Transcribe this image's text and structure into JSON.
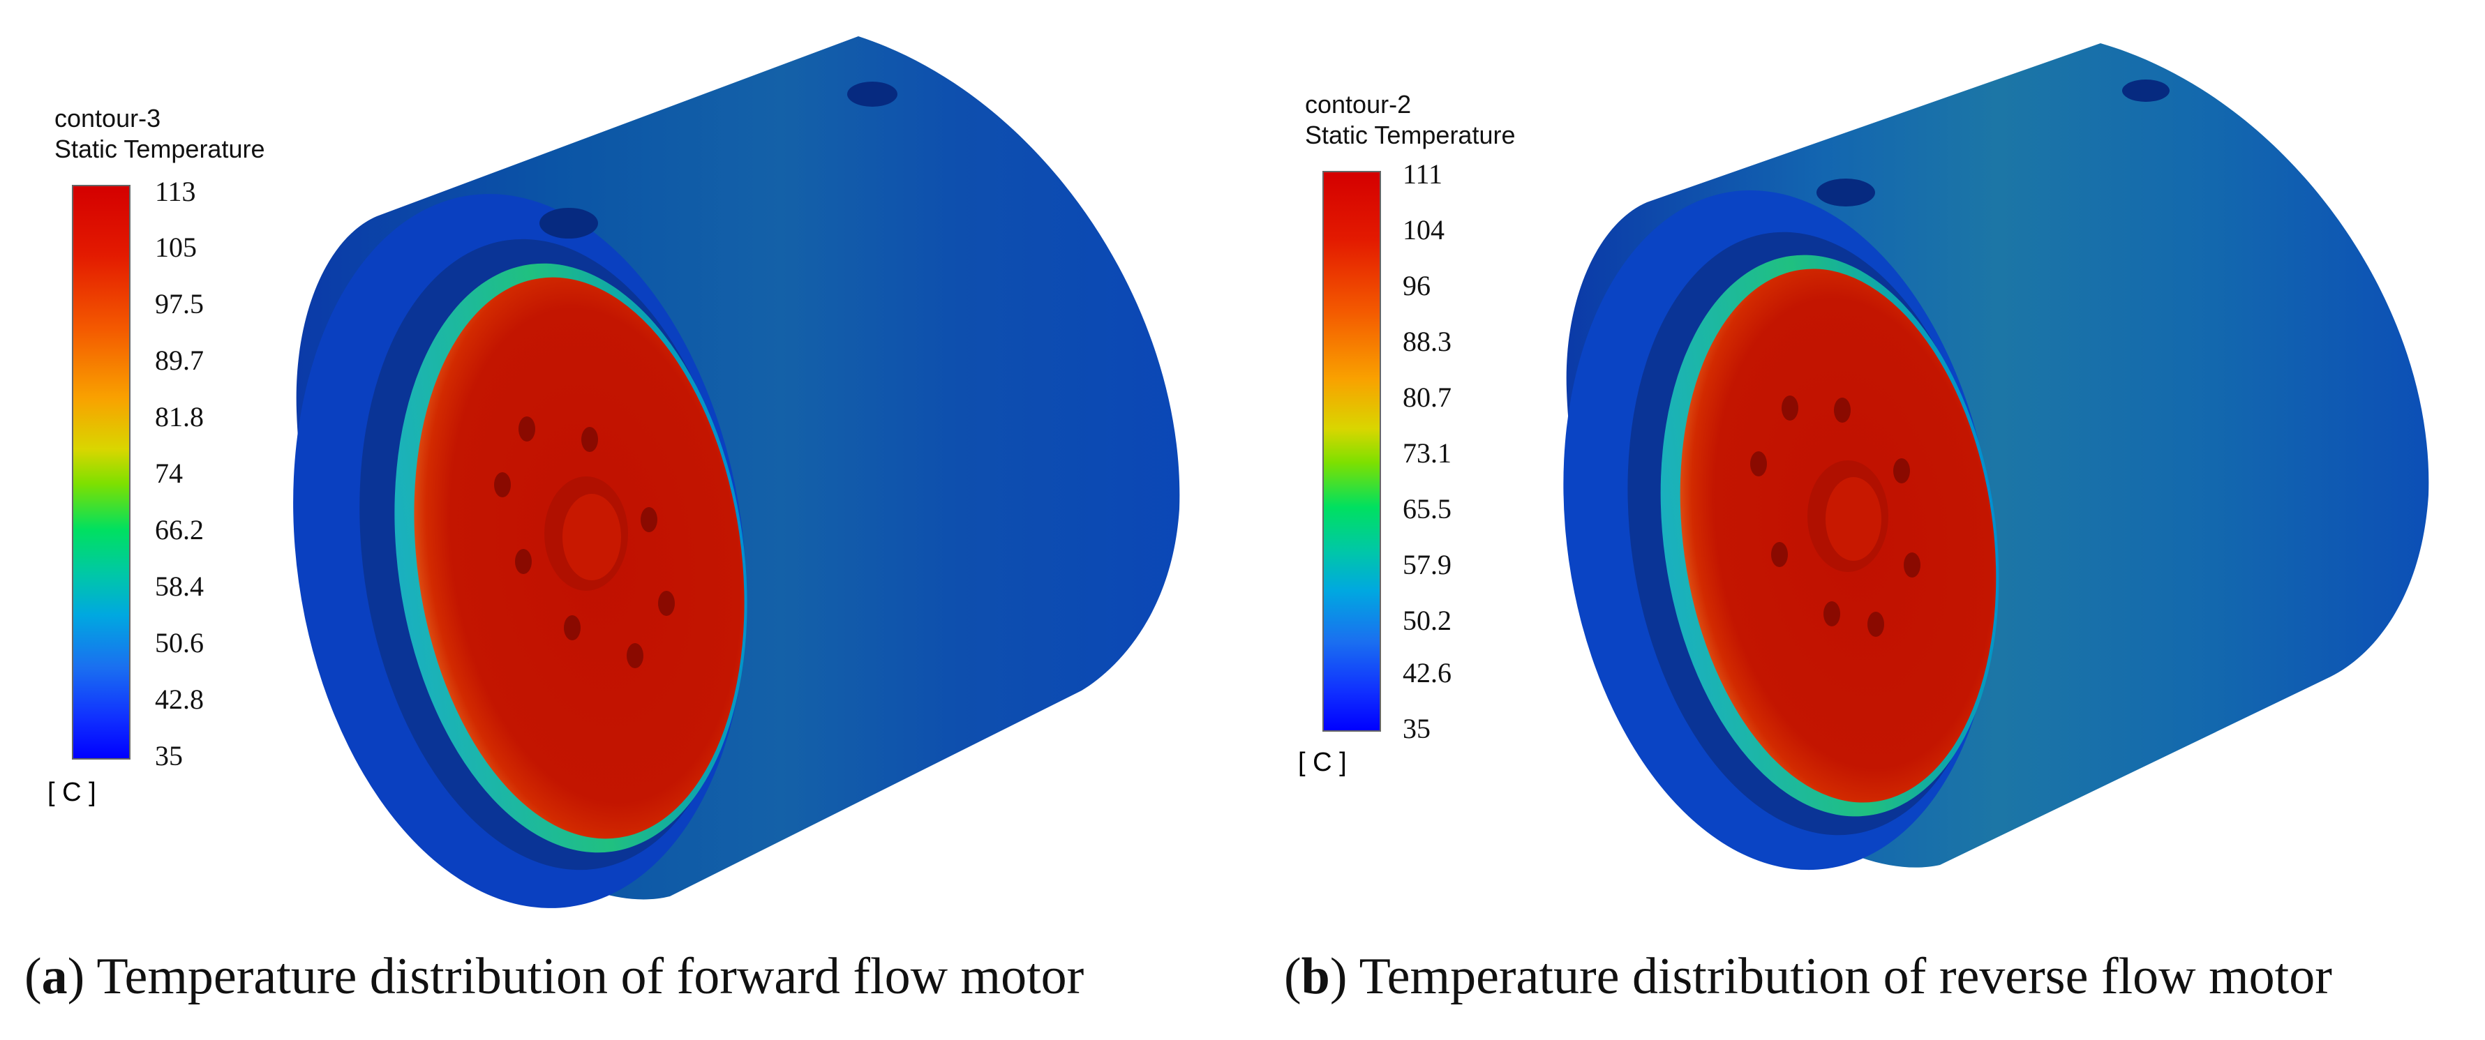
{
  "panels": [
    {
      "legend_name": "contour-3",
      "legend_variable": "Static Temperature",
      "ticks": [
        "113",
        "105",
        "97.5",
        "89.7",
        "81.8",
        "74",
        "66.2",
        "58.4",
        "50.6",
        "42.8",
        "35"
      ],
      "unit": "[ C ]",
      "caption_letter": "a",
      "caption_text": "Temperature distribution of forward flow motor"
    },
    {
      "legend_name": "contour-2",
      "legend_variable": "Static Temperature",
      "ticks": [
        "111",
        "104",
        "96",
        "88.3",
        "80.7",
        "73.1",
        "65.5",
        "57.9",
        "50.2",
        "42.6",
        "35"
      ],
      "unit": "[ C ]",
      "caption_letter": "b",
      "caption_text": "Temperature distribution of reverse flow motor"
    }
  ],
  "colors": {
    "hot": "#c41200",
    "housing_dark": "#0a3fb0",
    "housing_light": "#0f63b0"
  }
}
